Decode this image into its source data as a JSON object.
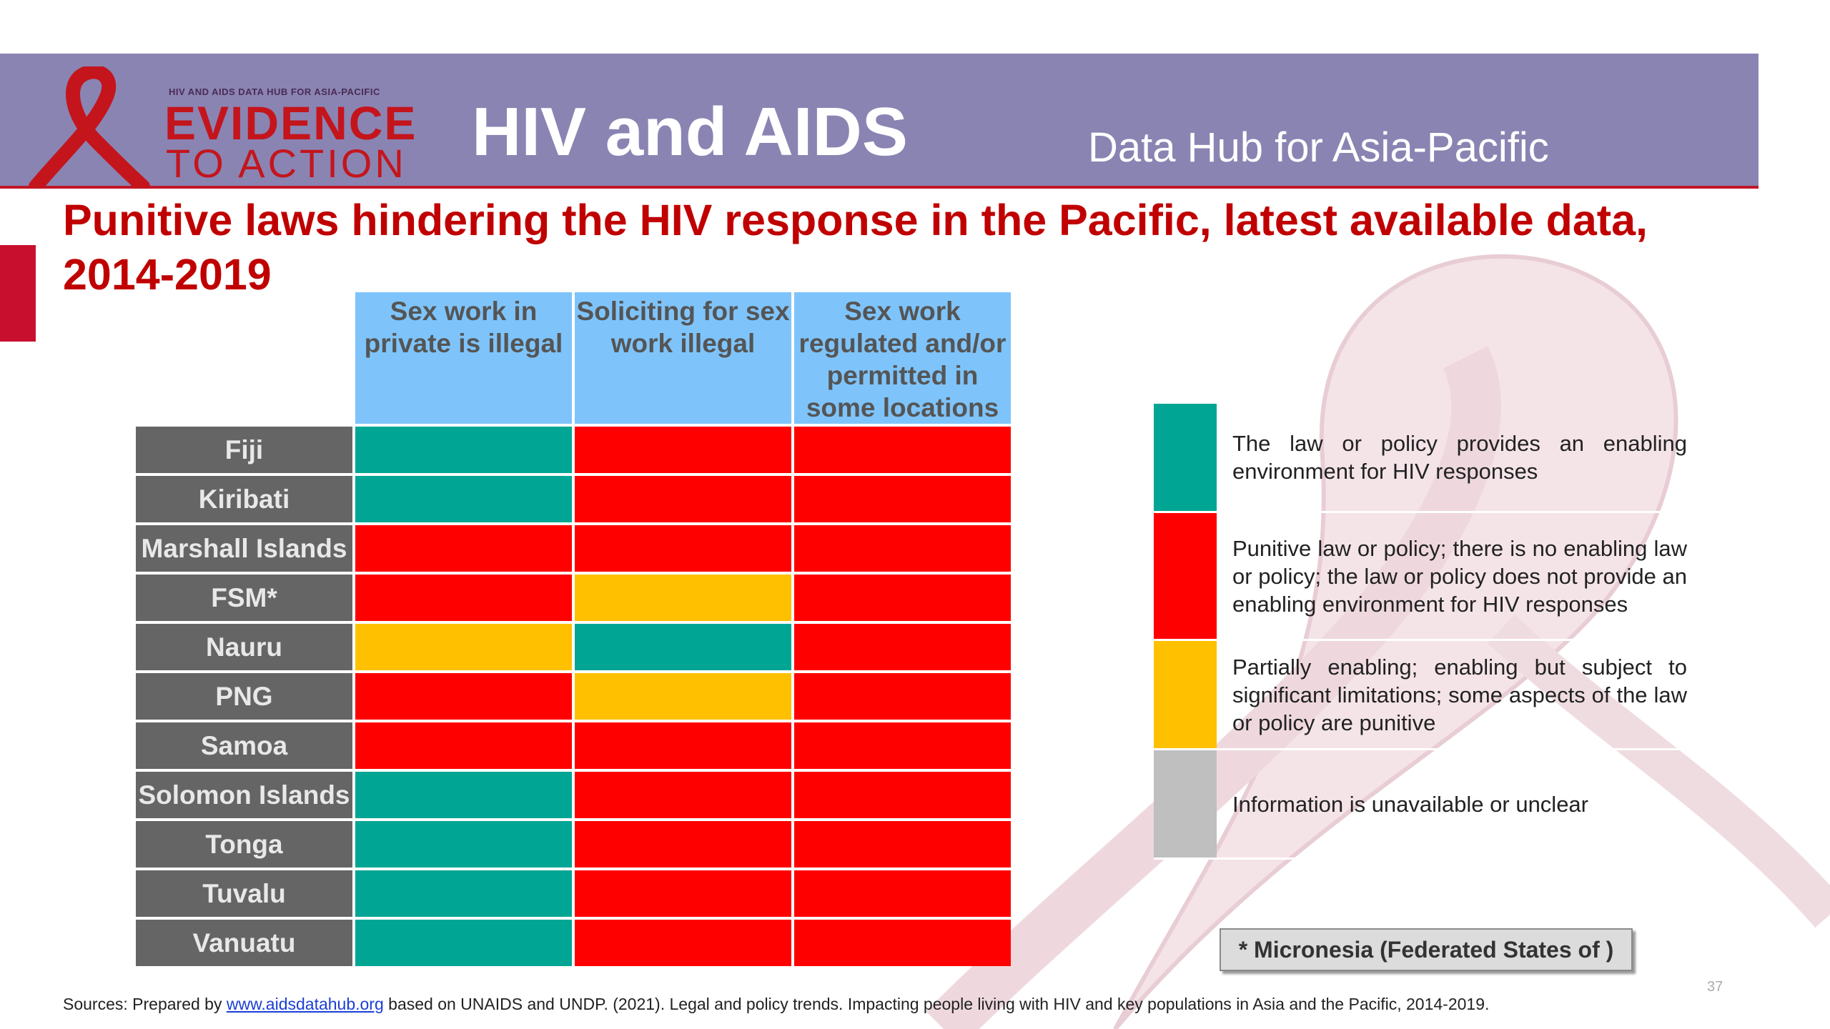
{
  "header": {
    "logo": {
      "small_text": "HIV AND AIDS DATA HUB FOR ASIA-PACIFIC",
      "line1": "EVIDENCE",
      "line2": "TO ACTION"
    },
    "title": "HIV and AIDS",
    "subtitle": "Data Hub for Asia-Pacific"
  },
  "page_title": "Punitive laws hindering the HIV response in the  Pacific, latest available data, 2014-2019",
  "table": {
    "columns": [
      "Sex work in private is illegal",
      "Soliciting for sex work illegal",
      "Sex work regulated and/or permitted in some locations"
    ],
    "rows": [
      {
        "country": "Fiji",
        "statuses": [
          "enabling",
          "punitive",
          "punitive"
        ]
      },
      {
        "country": "Kiribati",
        "statuses": [
          "enabling",
          "punitive",
          "punitive"
        ]
      },
      {
        "country": "Marshall Islands",
        "statuses": [
          "punitive",
          "punitive",
          "punitive"
        ]
      },
      {
        "country": "FSM*",
        "statuses": [
          "punitive",
          "partial",
          "punitive"
        ]
      },
      {
        "country": "Nauru",
        "statuses": [
          "partial",
          "enabling",
          "punitive"
        ]
      },
      {
        "country": "PNG",
        "statuses": [
          "punitive",
          "partial",
          "punitive"
        ]
      },
      {
        "country": "Samoa",
        "statuses": [
          "punitive",
          "punitive",
          "punitive"
        ]
      },
      {
        "country": "Solomon Islands",
        "statuses": [
          "enabling",
          "punitive",
          "punitive"
        ]
      },
      {
        "country": "Tonga",
        "statuses": [
          "enabling",
          "punitive",
          "punitive"
        ]
      },
      {
        "country": "Tuvalu",
        "statuses": [
          "enabling",
          "punitive",
          "punitive"
        ]
      },
      {
        "country": "Vanuatu",
        "statuses": [
          "enabling",
          "punitive",
          "punitive"
        ]
      }
    ]
  },
  "status_colors": {
    "enabling": "#00a693",
    "punitive": "#ff0000",
    "partial": "#ffc000",
    "unavailable": "#bfbfbf"
  },
  "legend": [
    {
      "status": "enabling",
      "text": "The law or policy provides an enabling environment for HIV responses"
    },
    {
      "status": "punitive",
      "text": "Punitive law or policy; there is no enabling law or policy; the law or policy does not provide an enabling environment for HIV responses"
    },
    {
      "status": "partial",
      "text": "Partially enabling; enabling but subject to significant limitations; some aspects of the law or policy are punitive"
    },
    {
      "status": "unavailable",
      "text": "Information is unavailable or unclear"
    }
  ],
  "footnote": "* Micronesia (Federated States of )",
  "page_number": "37",
  "sources": {
    "prefix": "Sources: Prepared by ",
    "link": "www.aidsdatahub.org",
    "suffix": "  based on UNAIDS and UNDP. (2021). Legal and policy trends. Impacting people living with HIV and key populations in Asia and the Pacific, 2014-2019."
  },
  "colors": {
    "header_bg": "#8a84b3",
    "title_red": "#c00000",
    "column_header_bg": "#7ec4fb",
    "row_header_bg": "#656565"
  }
}
